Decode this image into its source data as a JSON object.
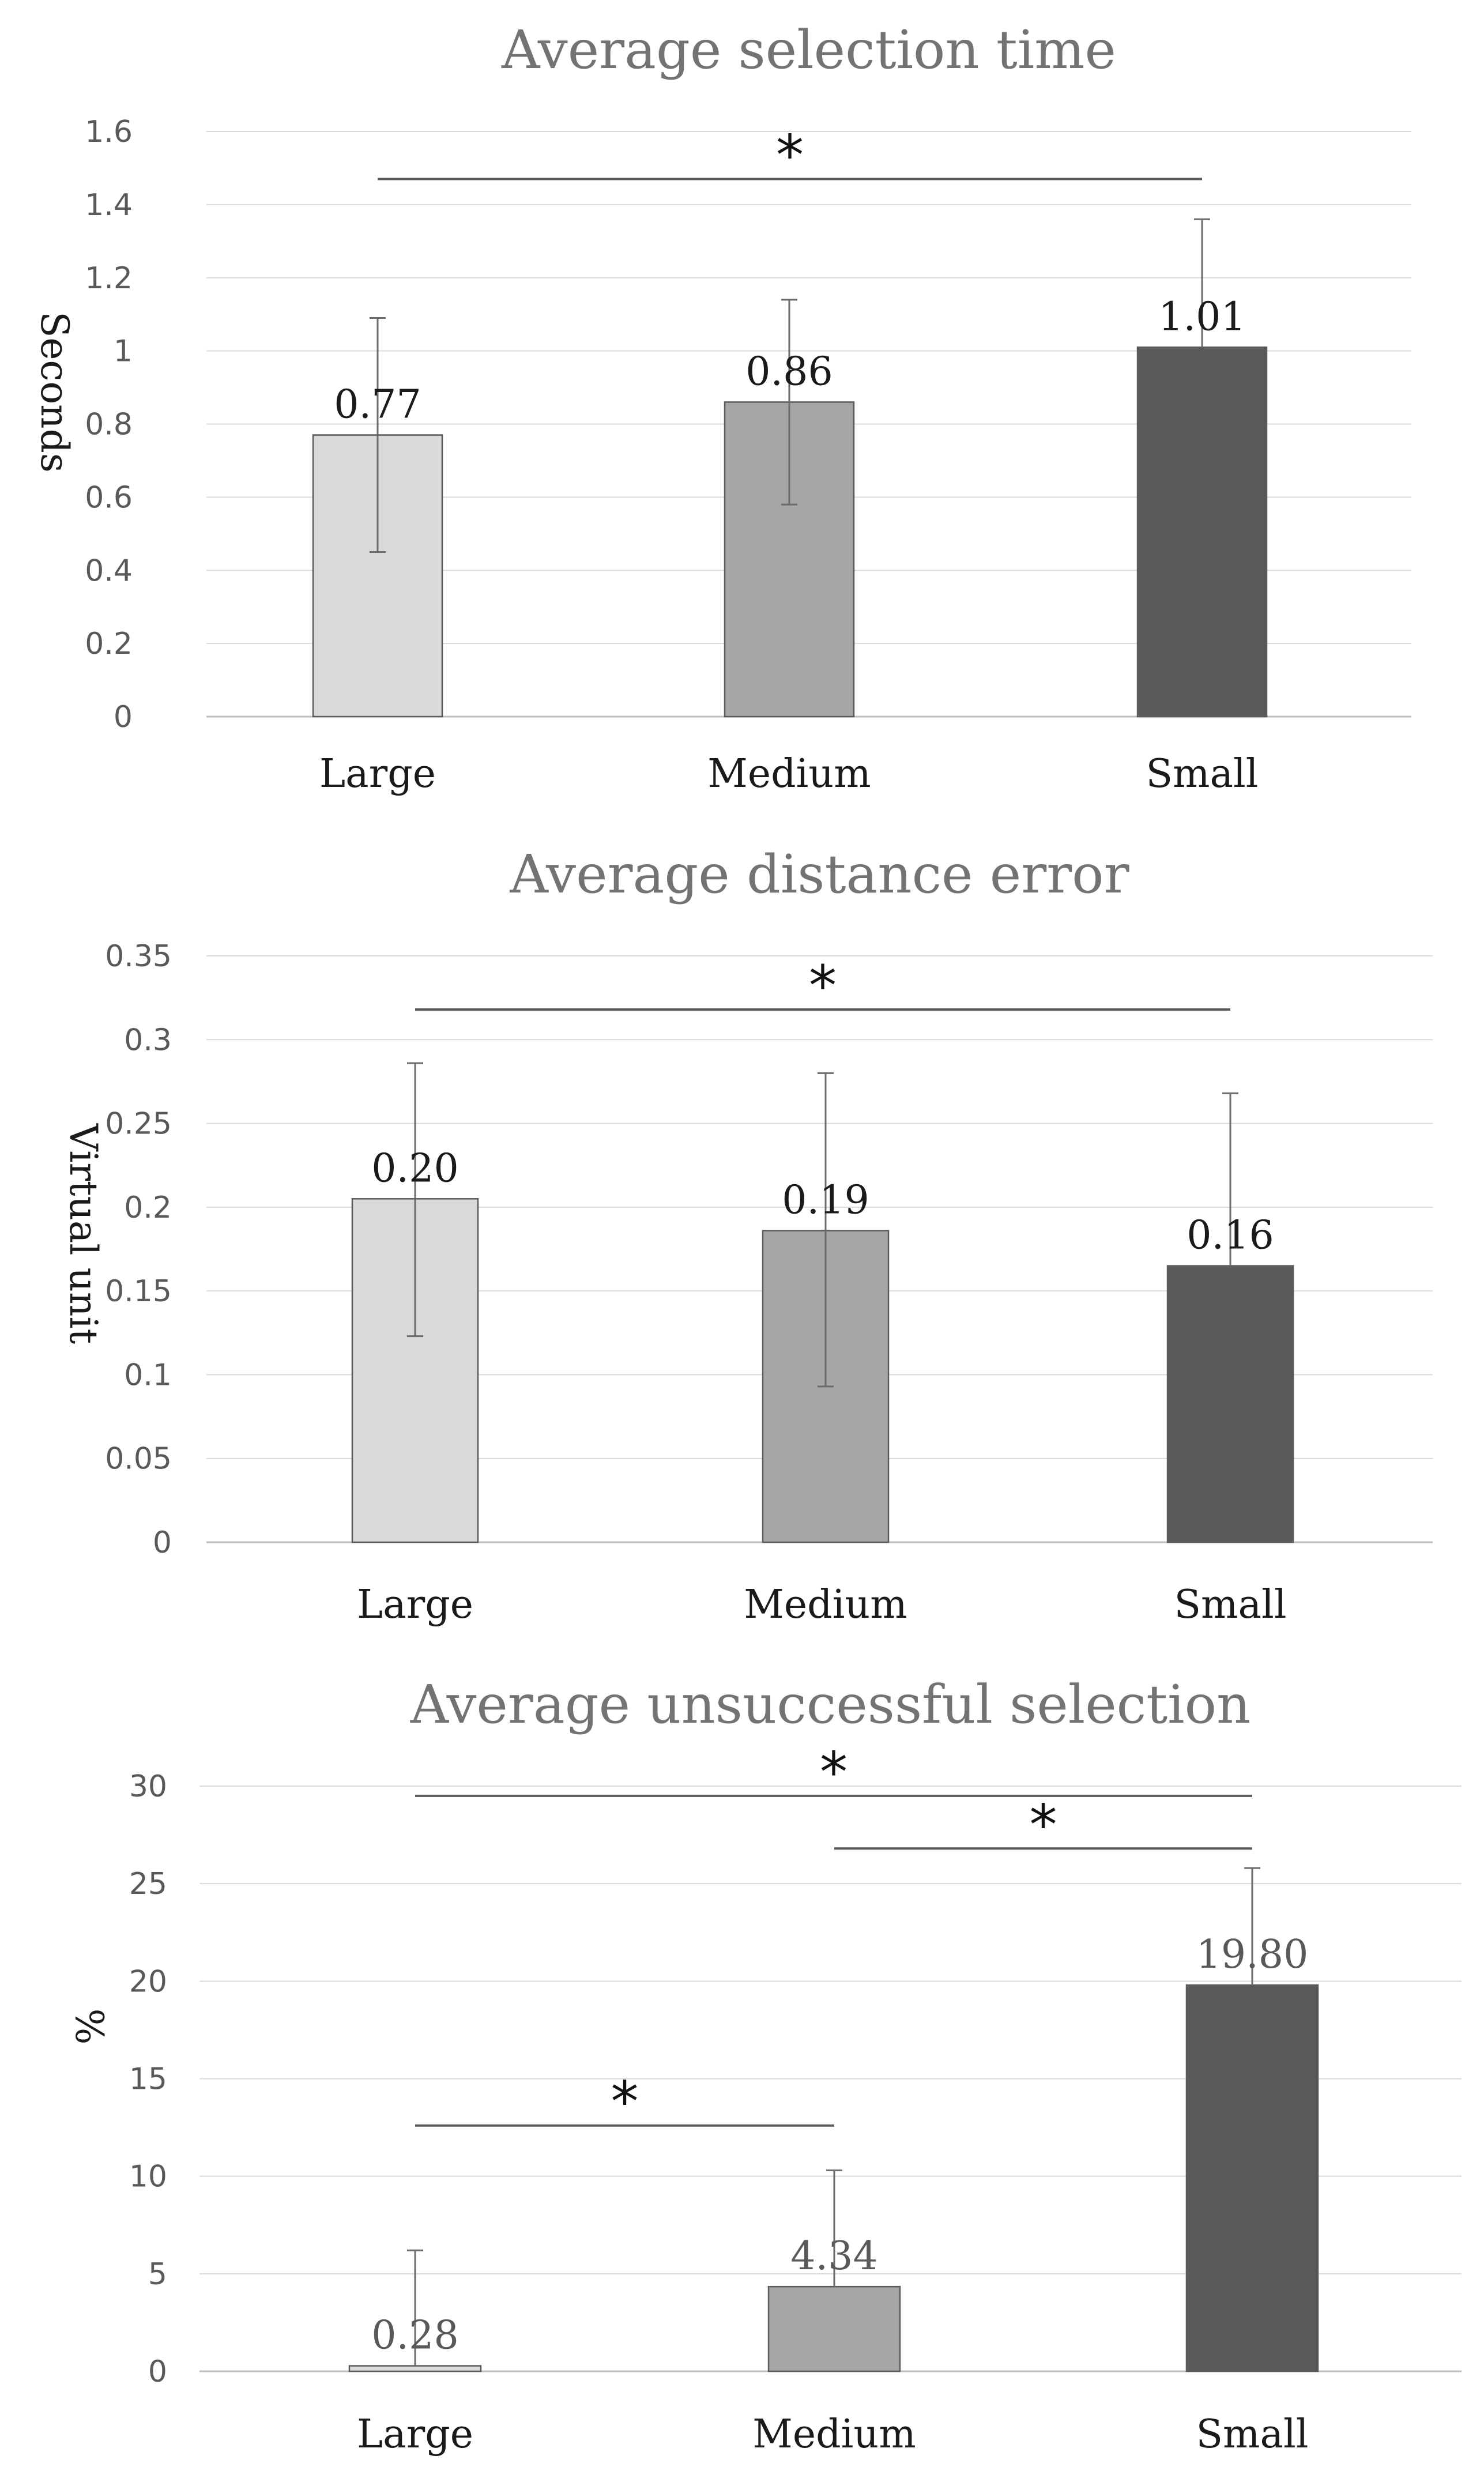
{
  "chart_data": [
    {
      "type": "bar",
      "title": "Average selection time",
      "xlabel": "",
      "ylabel": "Seconds",
      "ylim": [
        0,
        1.6
      ],
      "yticks": [
        0,
        0.2,
        0.4,
        0.6,
        0.8,
        1,
        1.2,
        1.4,
        1.6
      ],
      "ytick_labels": [
        "0",
        "0.2",
        "0.4",
        "0.6",
        "0.8",
        "1",
        "1.2",
        "1.4",
        "1.6"
      ],
      "categories": [
        "Large",
        "Medium",
        "Small"
      ],
      "values": [
        0.77,
        0.86,
        1.01
      ],
      "value_labels": [
        "0.77",
        "0.86",
        "1.01"
      ],
      "error_bars": [
        {
          "low": 0.45,
          "high": 1.09
        },
        {
          "low": 0.58,
          "high": 1.14
        },
        {
          "low": 1.01,
          "high": 1.36
        }
      ],
      "bar_colors": [
        "#d9d9d9",
        "#a6a6a6",
        "#595959"
      ],
      "grid": true,
      "significance": [
        {
          "from": 0,
          "to": 2,
          "level": 1.47,
          "label": "*"
        }
      ]
    },
    {
      "type": "bar",
      "title": "Average distance error",
      "xlabel": "",
      "ylabel": "Virtual unit",
      "ylim": [
        0,
        0.35
      ],
      "yticks": [
        0,
        0.05,
        0.1,
        0.15,
        0.2,
        0.25,
        0.3,
        0.35
      ],
      "ytick_labels": [
        "0",
        "0.05",
        "0.1",
        "0.15",
        "0.2",
        "0.25",
        "0.3",
        "0.35"
      ],
      "categories": [
        "Large",
        "Medium",
        "Small"
      ],
      "values": [
        0.205,
        0.186,
        0.165
      ],
      "value_labels": [
        "0.20",
        "0.19",
        "0.16"
      ],
      "error_bars": [
        {
          "low": 0.123,
          "high": 0.286
        },
        {
          "low": 0.093,
          "high": 0.28
        },
        {
          "low": 0.165,
          "high": 0.268
        }
      ],
      "bar_colors": [
        "#d9d9d9",
        "#a6a6a6",
        "#595959"
      ],
      "grid": true,
      "significance": [
        {
          "from": 0,
          "to": 2,
          "level": 0.318,
          "label": "*"
        }
      ]
    },
    {
      "type": "bar",
      "title": "Average unsuccessful selection",
      "xlabel": "",
      "ylabel": "%",
      "ylim": [
        0,
        30
      ],
      "yticks": [
        0,
        5,
        10,
        15,
        20,
        25,
        30
      ],
      "ytick_labels": [
        "0",
        "5",
        "10",
        "15",
        "20",
        "25",
        "30"
      ],
      "categories": [
        "Large",
        "Medium",
        "Small"
      ],
      "values": [
        0.28,
        4.34,
        19.8
      ],
      "value_labels": [
        "0.28",
        "4.34",
        "19.80"
      ],
      "error_bars": [
        {
          "low": 0.28,
          "high": 6.2
        },
        {
          "low": 4.34,
          "high": 10.3
        },
        {
          "low": 19.8,
          "high": 25.8
        }
      ],
      "bar_colors": [
        "#d9d9d9",
        "#a6a6a6",
        "#595959"
      ],
      "grid": true,
      "significance": [
        {
          "from": 0,
          "to": 2,
          "level": 29.5,
          "label": "*"
        },
        {
          "from": 1,
          "to": 2,
          "level": 26.8,
          "label": "*"
        },
        {
          "from": 0,
          "to": 1,
          "level": 12.6,
          "label": "*"
        }
      ]
    }
  ]
}
